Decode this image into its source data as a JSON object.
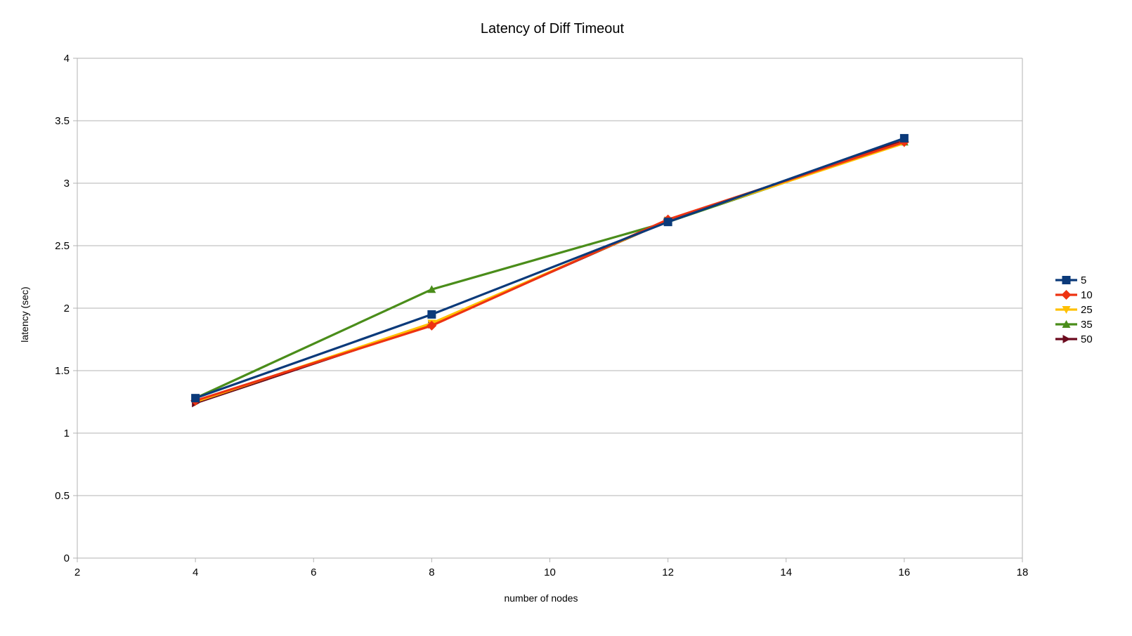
{
  "chart_data": {
    "type": "line",
    "title": "Latency of Diff Timeout",
    "xlabel": "number of nodes",
    "ylabel": "latency (sec)",
    "xlim": [
      2,
      18
    ],
    "ylim": [
      0,
      4
    ],
    "xticks": [
      2,
      4,
      6,
      8,
      10,
      12,
      14,
      16,
      18
    ],
    "yticks": [
      0,
      0.5,
      1,
      1.5,
      2,
      2.5,
      3,
      3.5,
      4
    ],
    "xtick_labels": [
      "2",
      "4",
      "6",
      "8",
      "10",
      "12",
      "14",
      "16",
      "18"
    ],
    "ytick_labels": [
      "0",
      "0.5",
      "1",
      "1.5",
      "2",
      "2.5",
      "3",
      "3.5",
      "4"
    ],
    "grid": "horizontal",
    "legend_position": "right",
    "x": [
      4,
      8,
      12,
      16
    ],
    "series": [
      {
        "name": "5",
        "values": [
          1.28,
          1.95,
          2.69,
          3.36
        ],
        "color": "#0b3a7a",
        "marker": "square"
      },
      {
        "name": "10",
        "values": [
          1.26,
          1.86,
          2.71,
          3.33
        ],
        "color": "#ee3311",
        "marker": "diamond"
      },
      {
        "name": "25",
        "values": [
          1.25,
          1.88,
          2.7,
          3.32
        ],
        "color": "#ffc000",
        "marker": "triangle-down"
      },
      {
        "name": "35",
        "values": [
          1.28,
          2.15,
          2.69,
          3.33
        ],
        "color": "#4a8d1a",
        "marker": "triangle-up"
      },
      {
        "name": "50",
        "values": [
          1.24,
          1.87,
          2.7,
          3.34
        ],
        "color": "#6b0a1e",
        "marker": "triangle-right"
      }
    ],
    "draw_order": [
      "35",
      "50",
      "25",
      "10",
      "5"
    ]
  }
}
